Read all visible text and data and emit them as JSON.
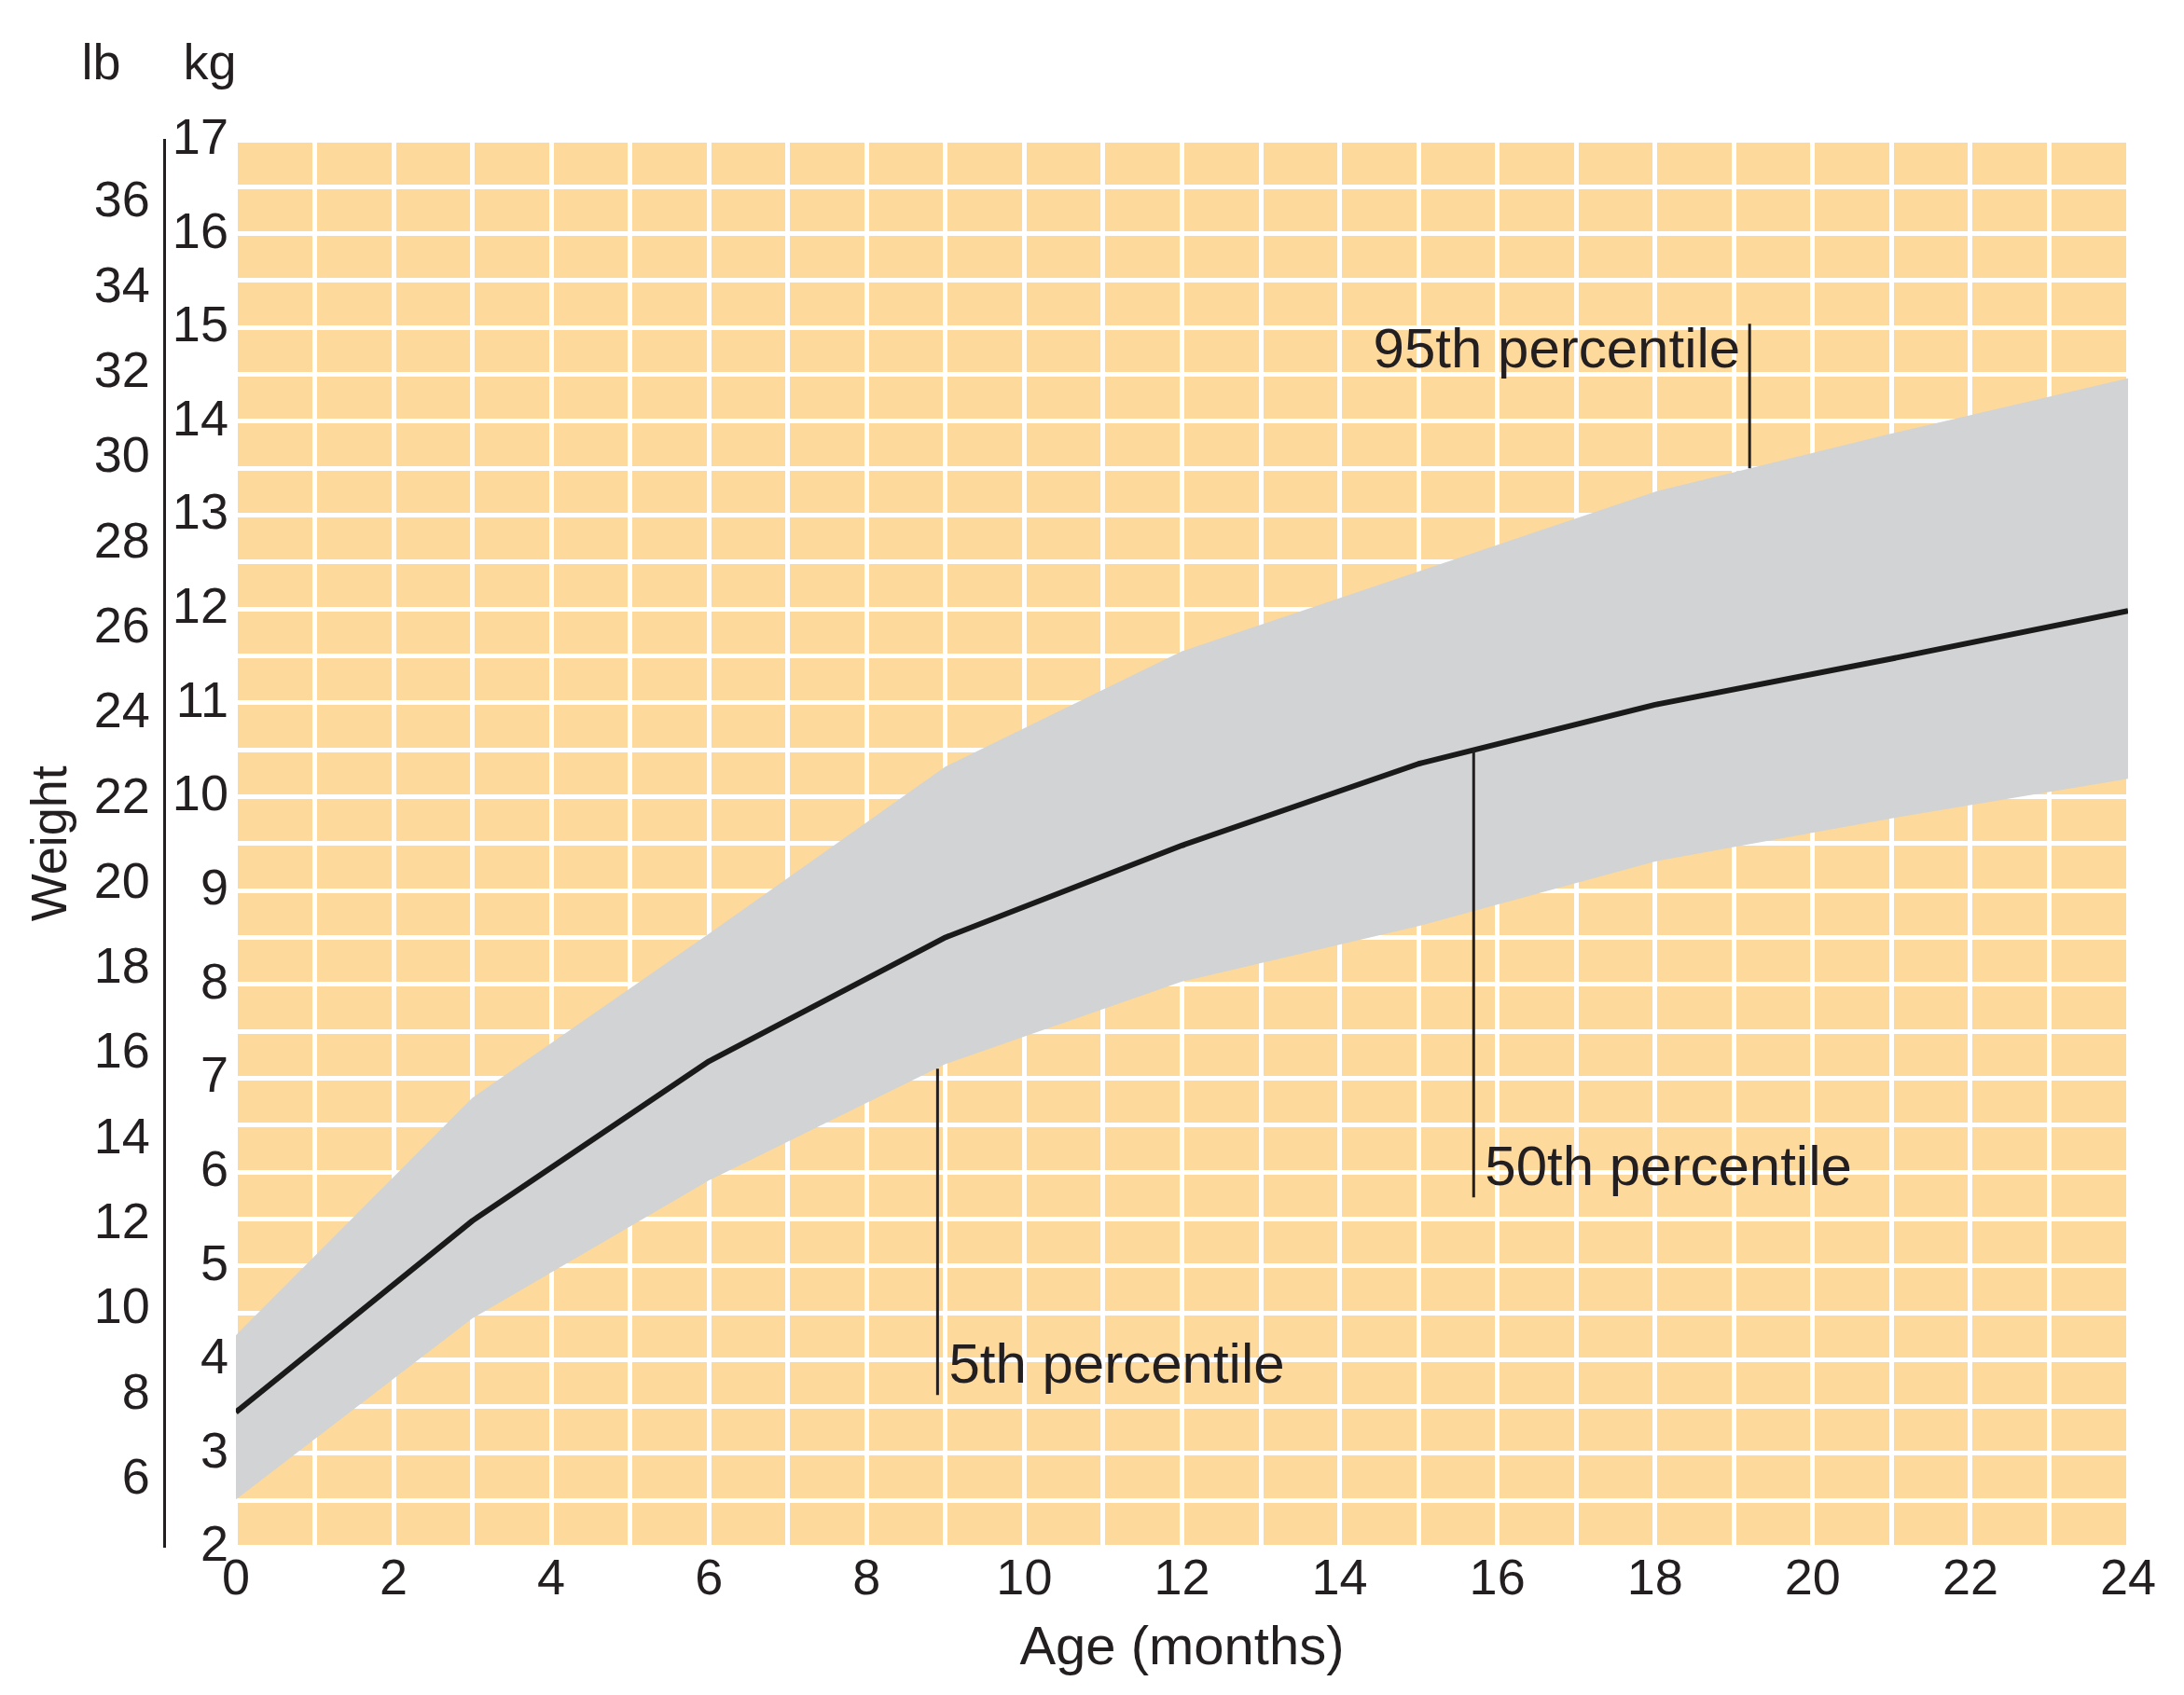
{
  "chart_data": {
    "type": "line",
    "xlabel": "Age (months)",
    "y2label": "Weight",
    "annotations": [
      "lb",
      "kg",
      {
        "text": "95th percentile",
        "x": 19.2,
        "y": 13.5
      },
      {
        "text": "50th percentile",
        "x": 15.7,
        "y": 10.5
      },
      {
        "text": "5th percentile",
        "x": 8.9,
        "y": 7.1
      }
    ],
    "x": [
      0,
      3,
      6,
      9,
      12,
      15,
      18,
      21,
      24
    ],
    "series": [
      {
        "color": "#1a1a1a",
        "values": [
          3.44,
          5.48,
          7.18,
          8.5,
          9.48,
          10.35,
          10.98,
          11.47,
          11.98
        ],
        "lower": [
          2.51,
          4.44,
          5.91,
          7.15,
          8.03,
          8.62,
          9.31,
          9.77,
          10.19
        ],
        "upper": [
          4.26,
          6.79,
          8.54,
          10.32,
          11.55,
          12.4,
          13.25,
          13.87,
          14.46
        ]
      }
    ],
    "xlim": [
      0,
      24
    ],
    "xticks": [
      0,
      {
        "value": 1,
        "label": null
      },
      2,
      {
        "value": 3,
        "label": null
      },
      4,
      {
        "value": 5,
        "label": null
      },
      6,
      {
        "value": 7,
        "label": null
      },
      8,
      {
        "value": 9,
        "label": null
      },
      10,
      {
        "value": 11,
        "label": null
      },
      12,
      {
        "value": 13,
        "label": null
      },
      14,
      {
        "value": 15,
        "label": null
      },
      16,
      {
        "value": 17,
        "label": null
      },
      18,
      {
        "value": 19,
        "label": null
      },
      20,
      {
        "value": 21,
        "label": null
      },
      22,
      {
        "value": 23,
        "label": null
      },
      24
    ],
    "ylim": [
      2,
      17
    ],
    "yticks": [
      2,
      {
        "value": 2.5,
        "label": null
      },
      3,
      {
        "value": 3.5,
        "label": null
      },
      4,
      {
        "value": 4.5,
        "label": null
      },
      5,
      {
        "value": 5.5,
        "label": null
      },
      6,
      {
        "value": 6.5,
        "label": null
      },
      7,
      {
        "value": 7.5,
        "label": null
      },
      8,
      {
        "value": 8.5,
        "label": null
      },
      9,
      {
        "value": 9.5,
        "label": null
      },
      10,
      {
        "value": 10.5,
        "label": null
      },
      11,
      {
        "value": 11.5,
        "label": null
      },
      12,
      {
        "value": 12.5,
        "label": null
      },
      13,
      {
        "value": 13.5,
        "label": null
      },
      14,
      {
        "value": 14.5,
        "label": null
      },
      15,
      {
        "value": 15.5,
        "label": null
      },
      16,
      {
        "value": 16.5,
        "label": null
      },
      17
    ],
    "y2lim": [
      4.41,
      37.48
    ],
    "y2ticks": [
      6,
      8,
      10,
      12,
      14,
      16,
      18,
      20,
      22,
      24,
      26,
      28,
      30,
      32,
      34,
      36
    ],
    "grid": true,
    "legend": false,
    "marker": "none",
    "line_style": "solid"
  }
}
